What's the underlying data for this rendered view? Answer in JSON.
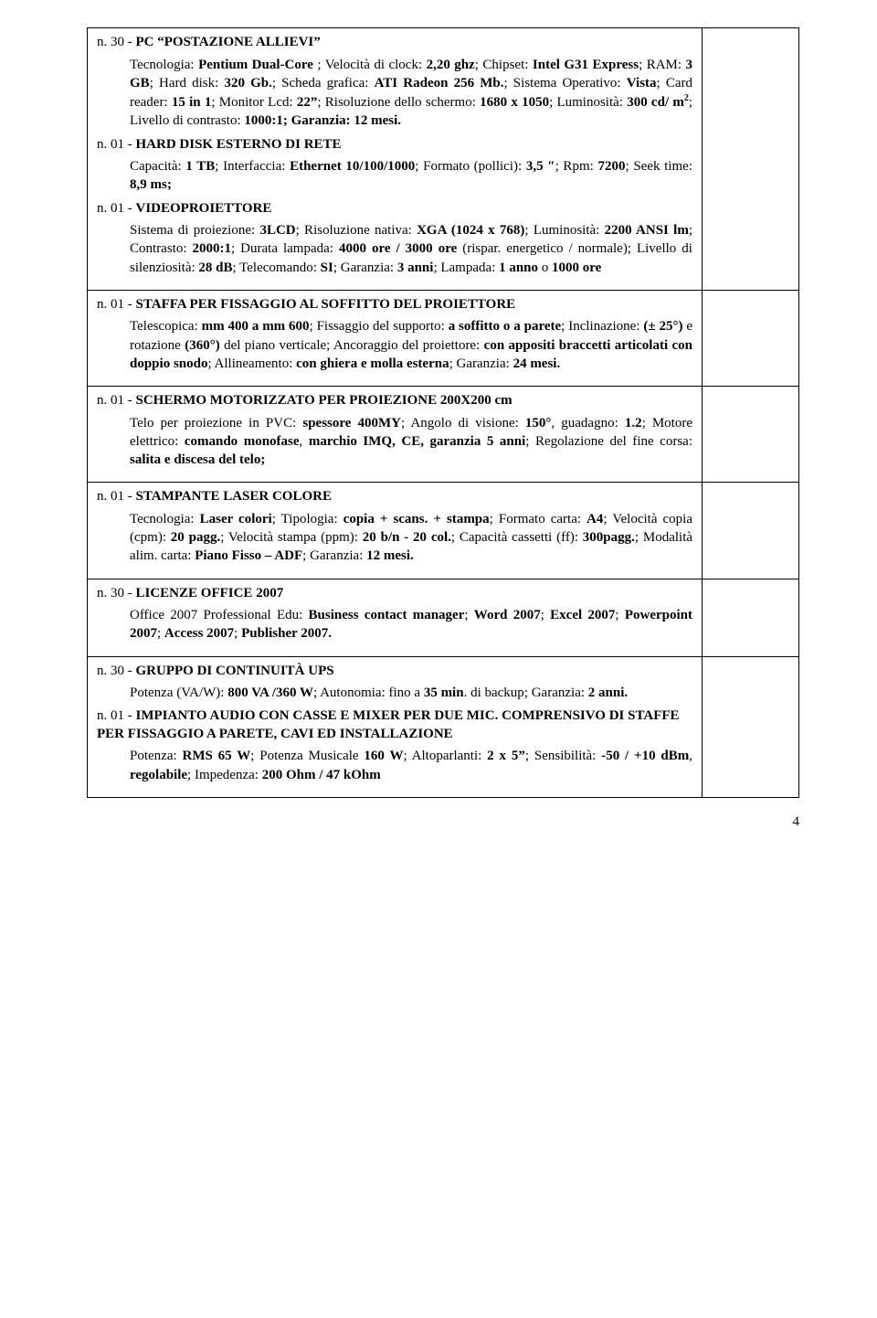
{
  "pageNumber": "4",
  "rows": [
    {
      "type": "multi",
      "items": [
        {
          "title_html": "n. 30 - <b>PC &ldquo;POSTAZIONE ALLIEVI&rdquo;</b>",
          "desc_html": "Tecnologia: <b>Pentium Dual-Core</b> ; Velocità di clock: <b>2,20 ghz</b>; Chipset: <b>Intel G31 Express</b>; RAM: <b>3 GB</b>; Hard disk: <b>320 Gb.</b>; Scheda grafica: <b>ATI Radeon 256 Mb.</b>; Sistema Operativo: <b>Vista</b>; Card reader: <b>15 in 1</b>; Monitor Lcd: <b>22&rdquo;</b>; Risoluzione dello schermo: <b>1680 x 1050</b>; Luminosità: <b>300 cd/ m<sup>2</sup></b>; Livello di contrasto: <b>1000:1; Garanzia: 12 mesi.</b>"
        },
        {
          "title_html": "n. 01 - <b>HARD DISK ESTERNO DI RETE</b>",
          "desc_html": "Capacità: <b>1 TB</b>; Interfaccia: <b>Ethernet 10/100/1000</b>; Formato (pollici): <b>3,5 &Prime;</b>; Rpm: <b>7200</b>; Seek time: <b>8,9 ms;</b>"
        },
        {
          "title_html": "n. 01 - <b>VIDEOPROIETTORE</b>",
          "desc_html": "Sistema di proiezione: <b>3LCD</b>; Risoluzione nativa: <b>XGA (1024 x 768)</b>; Luminosità: <b>2200 ANSI lm</b>; Contrasto: <b>2000:1</b>; Durata lampada: <b>4000 ore / 3000 ore</b> (rispar. energetico / normale); Livello di silenziosità: <b>28 dB</b>; Telecomando: <b>SI</b>; Garanzia: <b>3 anni</b>; Lampada: <b>1 anno</b> o <b>1000 ore</b>"
        }
      ]
    },
    {
      "type": "single",
      "title_html": "n. 01 - <b>STAFFA PER FISSAGGIO AL SOFFITTO DEL PROIETTORE</b>",
      "desc_html": "Telescopica: <b>mm 400 a mm 600</b>; Fissaggio del supporto: <b>a soffitto o a parete</b>; Inclinazione: <b>(± 25°)</b> e rotazione <b>(360°)</b> del piano verticale; Ancoraggio del proiettore: <b>con appositi braccetti articolati con doppio snodo</b>; Allineamento: <b>con ghiera e molla esterna</b>; Garanzia: <b>24 mesi.</b>"
    },
    {
      "type": "single",
      "title_html": "n. 01 - <b>SCHERMO MOTORIZZATO PER PROIEZIONE 200X200 cm</b>",
      "desc_html": "Telo per proiezione in PVC: <b>spessore 400MY</b>; Angolo di visione: <b>150°</b>, guadagno: <b>1.2</b>; Motore elettrico: <b>comando monofase</b>, <b>marchio IMQ, CE, garanzia 5 anni</b>; Regolazione del fine corsa: <b>salita e discesa del telo;</b>"
    },
    {
      "type": "single",
      "title_html": "n. 01 - <b>STAMPANTE LASER COLORE</b>",
      "desc_html": "Tecnologia: <b>Laser colori</b>; Tipologia: <b>copia + scans. + stampa</b>; Formato carta: <b>A4</b>; Velocità copia (cpm): <b>20 pagg.</b>; Velocità stampa (ppm): <b>20 b/n - 20 col.</b>; Capacità cassetti (ff): <b>300pagg.</b>; Modalità alim. carta: <b>Piano Fisso &ndash; ADF</b>; Garanzia: <b>12 mesi.</b>"
    },
    {
      "type": "single",
      "title_html": "n. 30 - <b>LICENZE OFFICE 2007</b>",
      "desc_html": "Office 2007 Professional Edu: <b>Business contact manager</b>; <b>Word 2007</b>; <b>Excel 2007</b>; <b>Powerpoint 2007</b>; <b>Access 2007</b>; <b>Publisher 2007.</b>"
    },
    {
      "type": "multi",
      "items": [
        {
          "title_html": "n. 30 - <b>GRUPPO DI CONTINUITÀ UPS</b>",
          "desc_html": "Potenza (VA/W): <b>800 VA /360 W</b>; Autonomia: fino a <b>35 min</b>. di backup; Garanzia: <b>2 anni.</b>"
        },
        {
          "title_html": "n. 01 - <b>IMPIANTO AUDIO CON CASSE E MIXER PER DUE MIC. COMPRENSIVO DI STAFFE PER FISSAGGIO A PARETE, CAVI ED INSTALLAZIONE</b>",
          "desc_html": "Potenza: <b>RMS 65 W</b>; Potenza Musicale <b>160 W</b>; Altoparlanti: <b>2 x 5&rdquo;</b>; Sensibilità: <b>-50 / +10 dBm</b>, <b>regolabile</b>; Impedenza: <b>200 Ohm / 47 kOhm</b>"
        }
      ]
    }
  ]
}
